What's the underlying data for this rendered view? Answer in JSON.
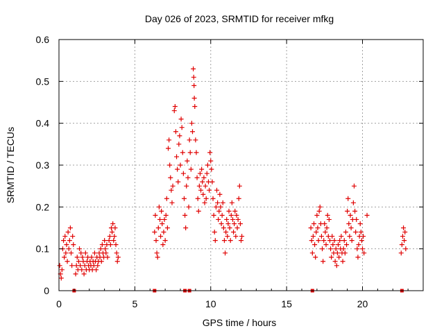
{
  "chart_data": {
    "type": "scatter",
    "title": "Day 026 of 2023, SRMTID for receiver mfkg",
    "xlabel": "GPS time / hours",
    "ylabel": "SRMTID / TECUs",
    "xlim": [
      0,
      24
    ],
    "ylim": [
      0,
      0.6
    ],
    "xticks": [
      0,
      5,
      10,
      15,
      20
    ],
    "yticks": [
      0,
      0.1,
      0.2,
      0.3,
      0.4,
      0.5,
      0.6
    ],
    "xtick_labels": [
      "0",
      "5",
      "10",
      "15",
      "20"
    ],
    "ytick_labels": [
      "0",
      "0.1",
      "0.2",
      "0.3",
      "0.4",
      "0.5",
      "0.6"
    ],
    "grid": true,
    "marker": "+",
    "series_color": "#e00000",
    "series": [
      {
        "name": "SRMTID",
        "points": [
          [
            0.05,
            0.06
          ],
          [
            0.1,
            0.04
          ],
          [
            0.15,
            0.03
          ],
          [
            0.2,
            0.05
          ],
          [
            0.25,
            0.1
          ],
          [
            0.3,
            0.12
          ],
          [
            0.35,
            0.08
          ],
          [
            0.4,
            0.13
          ],
          [
            0.45,
            0.09
          ],
          [
            0.5,
            0.11
          ],
          [
            0.55,
            0.07
          ],
          [
            0.6,
            0.14
          ],
          [
            0.65,
            0.1
          ],
          [
            0.7,
            0.12
          ],
          [
            0.75,
            0.15
          ],
          [
            0.8,
            0.09
          ],
          [
            0.85,
            0.06
          ],
          [
            0.9,
            0.13
          ],
          [
            0.95,
            0.11
          ],
          [
            1.1,
            0.04
          ],
          [
            1.15,
            0.06
          ],
          [
            1.2,
            0.08
          ],
          [
            1.25,
            0.05
          ],
          [
            1.3,
            0.07
          ],
          [
            1.35,
            0.1
          ],
          [
            1.4,
            0.06
          ],
          [
            1.45,
            0.09
          ],
          [
            1.5,
            0.05
          ],
          [
            1.55,
            0.08
          ],
          [
            1.6,
            0.07
          ],
          [
            1.65,
            0.04
          ],
          [
            1.7,
            0.06
          ],
          [
            1.75,
            0.09
          ],
          [
            1.8,
            0.05
          ],
          [
            1.85,
            0.07
          ],
          [
            1.9,
            0.08
          ],
          [
            1.95,
            0.06
          ],
          [
            2.0,
            0.05
          ],
          [
            2.05,
            0.07
          ],
          [
            2.1,
            0.06
          ],
          [
            2.15,
            0.08
          ],
          [
            2.2,
            0.05
          ],
          [
            2.25,
            0.07
          ],
          [
            2.3,
            0.06
          ],
          [
            2.35,
            0.09
          ],
          [
            2.4,
            0.07
          ],
          [
            2.45,
            0.05
          ],
          [
            2.5,
            0.08
          ],
          [
            2.55,
            0.06
          ],
          [
            2.6,
            0.07
          ],
          [
            2.65,
            0.09
          ],
          [
            2.7,
            0.08
          ],
          [
            2.75,
            0.1
          ],
          [
            2.8,
            0.07
          ],
          [
            2.85,
            0.11
          ],
          [
            2.9,
            0.09
          ],
          [
            2.95,
            0.08
          ],
          [
            3.0,
            0.12
          ],
          [
            3.05,
            0.1
          ],
          [
            3.1,
            0.09
          ],
          [
            3.15,
            0.11
          ],
          [
            3.2,
            0.08
          ],
          [
            3.3,
            0.12
          ],
          [
            3.35,
            0.13
          ],
          [
            3.4,
            0.11
          ],
          [
            3.45,
            0.15
          ],
          [
            3.5,
            0.14
          ],
          [
            3.55,
            0.16
          ],
          [
            3.6,
            0.12
          ],
          [
            3.65,
            0.13
          ],
          [
            3.7,
            0.15
          ],
          [
            3.75,
            0.11
          ],
          [
            3.8,
            0.09
          ],
          [
            3.85,
            0.07
          ],
          [
            3.9,
            0.08
          ],
          [
            6.3,
            0.14
          ],
          [
            6.35,
            0.18
          ],
          [
            6.4,
            0.12
          ],
          [
            6.45,
            0.09
          ],
          [
            6.5,
            0.08
          ],
          [
            6.55,
            0.15
          ],
          [
            6.6,
            0.2
          ],
          [
            6.65,
            0.17
          ],
          [
            6.7,
            0.13
          ],
          [
            6.75,
            0.19
          ],
          [
            6.8,
            0.16
          ],
          [
            6.85,
            0.11
          ],
          [
            6.9,
            0.14
          ],
          [
            6.95,
            0.17
          ],
          [
            7.0,
            0.12
          ],
          [
            7.05,
            0.18
          ],
          [
            7.1,
            0.22
          ],
          [
            7.15,
            0.15
          ],
          [
            7.2,
            0.34
          ],
          [
            7.25,
            0.36
          ],
          [
            7.3,
            0.3
          ],
          [
            7.35,
            0.27
          ],
          [
            7.4,
            0.24
          ],
          [
            7.45,
            0.21
          ],
          [
            7.5,
            0.25
          ],
          [
            7.6,
            0.43
          ],
          [
            7.65,
            0.44
          ],
          [
            7.7,
            0.38
          ],
          [
            7.75,
            0.32
          ],
          [
            7.8,
            0.29
          ],
          [
            7.85,
            0.26
          ],
          [
            7.9,
            0.35
          ],
          [
            7.95,
            0.37
          ],
          [
            8.0,
            0.3
          ],
          [
            8.05,
            0.41
          ],
          [
            8.1,
            0.39
          ],
          [
            8.15,
            0.33
          ],
          [
            8.2,
            0.28
          ],
          [
            8.25,
            0.22
          ],
          [
            8.3,
            0.18
          ],
          [
            8.35,
            0.15
          ],
          [
            8.4,
            0.25
          ],
          [
            8.45,
            0.31
          ],
          [
            8.5,
            0.27
          ],
          [
            8.55,
            0.2
          ],
          [
            8.6,
            0.36
          ],
          [
            8.65,
            0.33
          ],
          [
            8.7,
            0.29
          ],
          [
            8.75,
            0.4
          ],
          [
            8.8,
            0.38
          ],
          [
            8.85,
            0.53
          ],
          [
            8.88,
            0.51
          ],
          [
            8.9,
            0.49
          ],
          [
            8.92,
            0.46
          ],
          [
            8.95,
            0.44
          ],
          [
            9.0,
            0.36
          ],
          [
            9.05,
            0.33
          ],
          [
            9.1,
            0.27
          ],
          [
            9.15,
            0.22
          ],
          [
            9.2,
            0.19
          ],
          [
            9.25,
            0.25
          ],
          [
            9.3,
            0.28
          ],
          [
            9.35,
            0.24
          ],
          [
            9.4,
            0.29
          ],
          [
            9.45,
            0.26
          ],
          [
            9.5,
            0.23
          ],
          [
            9.55,
            0.27
          ],
          [
            9.6,
            0.21
          ],
          [
            9.65,
            0.25
          ],
          [
            9.7,
            0.22
          ],
          [
            9.75,
            0.28
          ],
          [
            9.8,
            0.3
          ],
          [
            9.85,
            0.26
          ],
          [
            9.9,
            0.24
          ],
          [
            9.95,
            0.33
          ],
          [
            10.0,
            0.31
          ],
          [
            10.05,
            0.29
          ],
          [
            10.1,
            0.26
          ],
          [
            10.15,
            0.22
          ],
          [
            10.2,
            0.18
          ],
          [
            10.25,
            0.14
          ],
          [
            10.3,
            0.12
          ],
          [
            10.35,
            0.2
          ],
          [
            10.4,
            0.24
          ],
          [
            10.45,
            0.21
          ],
          [
            10.5,
            0.17
          ],
          [
            10.55,
            0.19
          ],
          [
            10.6,
            0.23
          ],
          [
            10.65,
            0.2
          ],
          [
            10.7,
            0.16
          ],
          [
            10.75,
            0.18
          ],
          [
            10.8,
            0.21
          ],
          [
            10.85,
            0.15
          ],
          [
            10.9,
            0.12
          ],
          [
            10.95,
            0.09
          ],
          [
            11.0,
            0.14
          ],
          [
            11.05,
            0.17
          ],
          [
            11.1,
            0.13
          ],
          [
            11.15,
            0.16
          ],
          [
            11.2,
            0.19
          ],
          [
            11.25,
            0.15
          ],
          [
            11.3,
            0.12
          ],
          [
            11.35,
            0.18
          ],
          [
            11.4,
            0.21
          ],
          [
            11.45,
            0.17
          ],
          [
            11.5,
            0.14
          ],
          [
            11.55,
            0.16
          ],
          [
            11.6,
            0.19
          ],
          [
            11.65,
            0.13
          ],
          [
            11.7,
            0.18
          ],
          [
            11.75,
            0.15
          ],
          [
            11.8,
            0.17
          ],
          [
            11.85,
            0.22
          ],
          [
            11.9,
            0.25
          ],
          [
            11.95,
            0.16
          ],
          [
            12.0,
            0.12
          ],
          [
            12.05,
            0.13
          ],
          [
            16.6,
            0.15
          ],
          [
            16.65,
            0.12
          ],
          [
            16.7,
            0.09
          ],
          [
            16.75,
            0.13
          ],
          [
            16.8,
            0.16
          ],
          [
            16.85,
            0.11
          ],
          [
            16.9,
            0.08
          ],
          [
            16.95,
            0.14
          ],
          [
            17.0,
            0.18
          ],
          [
            17.05,
            0.15
          ],
          [
            17.1,
            0.12
          ],
          [
            17.15,
            0.19
          ],
          [
            17.2,
            0.2
          ],
          [
            17.25,
            0.16
          ],
          [
            17.3,
            0.13
          ],
          [
            17.35,
            0.1
          ],
          [
            17.4,
            0.07
          ],
          [
            17.45,
            0.12
          ],
          [
            17.5,
            0.16
          ],
          [
            17.55,
            0.14
          ],
          [
            17.6,
            0.11
          ],
          [
            17.65,
            0.15
          ],
          [
            17.7,
            0.18
          ],
          [
            17.75,
            0.13
          ],
          [
            17.8,
            0.17
          ],
          [
            17.85,
            0.12
          ],
          [
            17.9,
            0.1
          ],
          [
            17.95,
            0.08
          ],
          [
            18.0,
            0.13
          ],
          [
            18.05,
            0.11
          ],
          [
            18.1,
            0.09
          ],
          [
            18.15,
            0.12
          ],
          [
            18.2,
            0.07
          ],
          [
            18.25,
            0.1
          ],
          [
            18.3,
            0.06
          ],
          [
            18.35,
            0.09
          ],
          [
            18.4,
            0.11
          ],
          [
            18.45,
            0.08
          ],
          [
            18.5,
            0.12
          ],
          [
            18.55,
            0.1
          ],
          [
            18.6,
            0.13
          ],
          [
            18.65,
            0.09
          ],
          [
            18.7,
            0.07
          ],
          [
            18.75,
            0.1
          ],
          [
            18.8,
            0.12
          ],
          [
            18.85,
            0.09
          ],
          [
            18.9,
            0.14
          ],
          [
            18.95,
            0.11
          ],
          [
            19.0,
            0.19
          ],
          [
            19.05,
            0.22
          ],
          [
            19.1,
            0.16
          ],
          [
            19.15,
            0.13
          ],
          [
            19.2,
            0.18
          ],
          [
            19.25,
            0.15
          ],
          [
            19.3,
            0.12
          ],
          [
            19.35,
            0.17
          ],
          [
            19.4,
            0.21
          ],
          [
            19.45,
            0.25
          ],
          [
            19.5,
            0.19
          ],
          [
            19.55,
            0.14
          ],
          [
            19.6,
            0.17
          ],
          [
            19.65,
            0.1
          ],
          [
            19.7,
            0.08
          ],
          [
            19.75,
            0.11
          ],
          [
            19.8,
            0.13
          ],
          [
            19.85,
            0.16
          ],
          [
            19.9,
            0.14
          ],
          [
            19.95,
            0.12
          ],
          [
            20.0,
            0.1
          ],
          [
            20.05,
            0.13
          ],
          [
            20.1,
            0.09
          ],
          [
            20.3,
            0.18
          ],
          [
            22.55,
            0.09
          ],
          [
            22.6,
            0.11
          ],
          [
            22.65,
            0.13
          ],
          [
            22.7,
            0.15
          ],
          [
            22.75,
            0.12
          ],
          [
            22.8,
            0.14
          ],
          [
            22.85,
            0.1
          ]
        ]
      }
    ],
    "baseline_markers": [
      1.0,
      6.3,
      8.3,
      8.6,
      16.7,
      22.6
    ]
  }
}
